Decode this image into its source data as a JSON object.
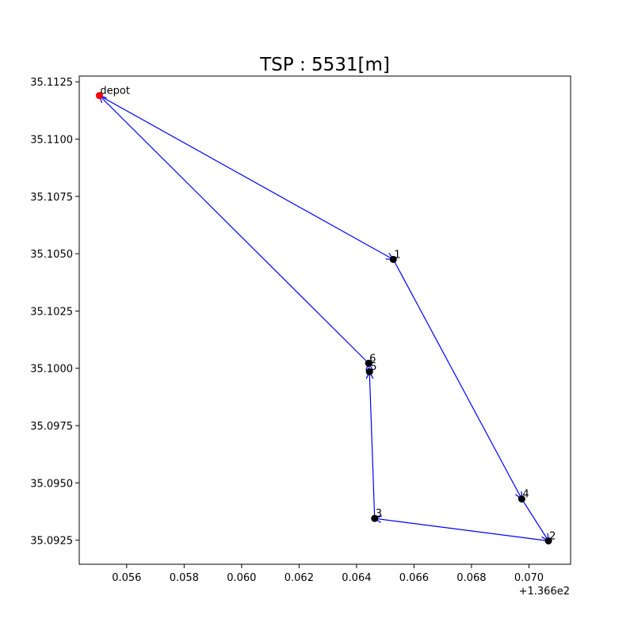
{
  "chart_data": {
    "type": "scatter",
    "title": "TSP : 5531[m]",
    "x_offset_label": "+1.366e2",
    "xlim": [
      136.65435,
      136.67145
    ],
    "ylim": [
      35.09145,
      35.11275
    ],
    "x_ticks": [
      136.656,
      136.658,
      136.66,
      136.662,
      136.664,
      136.666,
      136.668,
      136.67
    ],
    "x_tick_labels": [
      "0.056",
      "0.058",
      "0.060",
      "0.062",
      "0.064",
      "0.066",
      "0.068",
      "0.070"
    ],
    "y_ticks": [
      35.0925,
      35.095,
      35.0975,
      35.1,
      35.1025,
      35.105,
      35.1075,
      35.11,
      35.1125
    ],
    "y_tick_labels": [
      "35.0925",
      "35.0950",
      "35.0975",
      "35.1000",
      "35.1025",
      "35.1050",
      "35.1075",
      "35.1100",
      "35.1125"
    ],
    "points": [
      {
        "label": "depot",
        "x": 136.65505,
        "y": 35.1119,
        "color": "#ff0000"
      },
      {
        "label": "1",
        "x": 136.66528,
        "y": 35.10475,
        "color": "#000000"
      },
      {
        "label": "2",
        "x": 136.67068,
        "y": 35.09247,
        "color": "#000000"
      },
      {
        "label": "3",
        "x": 136.66463,
        "y": 35.09345,
        "color": "#000000"
      },
      {
        "label": "4",
        "x": 136.66975,
        "y": 35.0943,
        "color": "#000000"
      },
      {
        "label": "5",
        "x": 136.66445,
        "y": 35.09985,
        "color": "#000000"
      },
      {
        "label": "6",
        "x": 136.66442,
        "y": 35.10022,
        "color": "#000000"
      }
    ],
    "route": [
      "depot",
      "1",
      "4",
      "2",
      "3",
      "5",
      "6",
      "depot"
    ],
    "route_color": "#0000ff"
  }
}
